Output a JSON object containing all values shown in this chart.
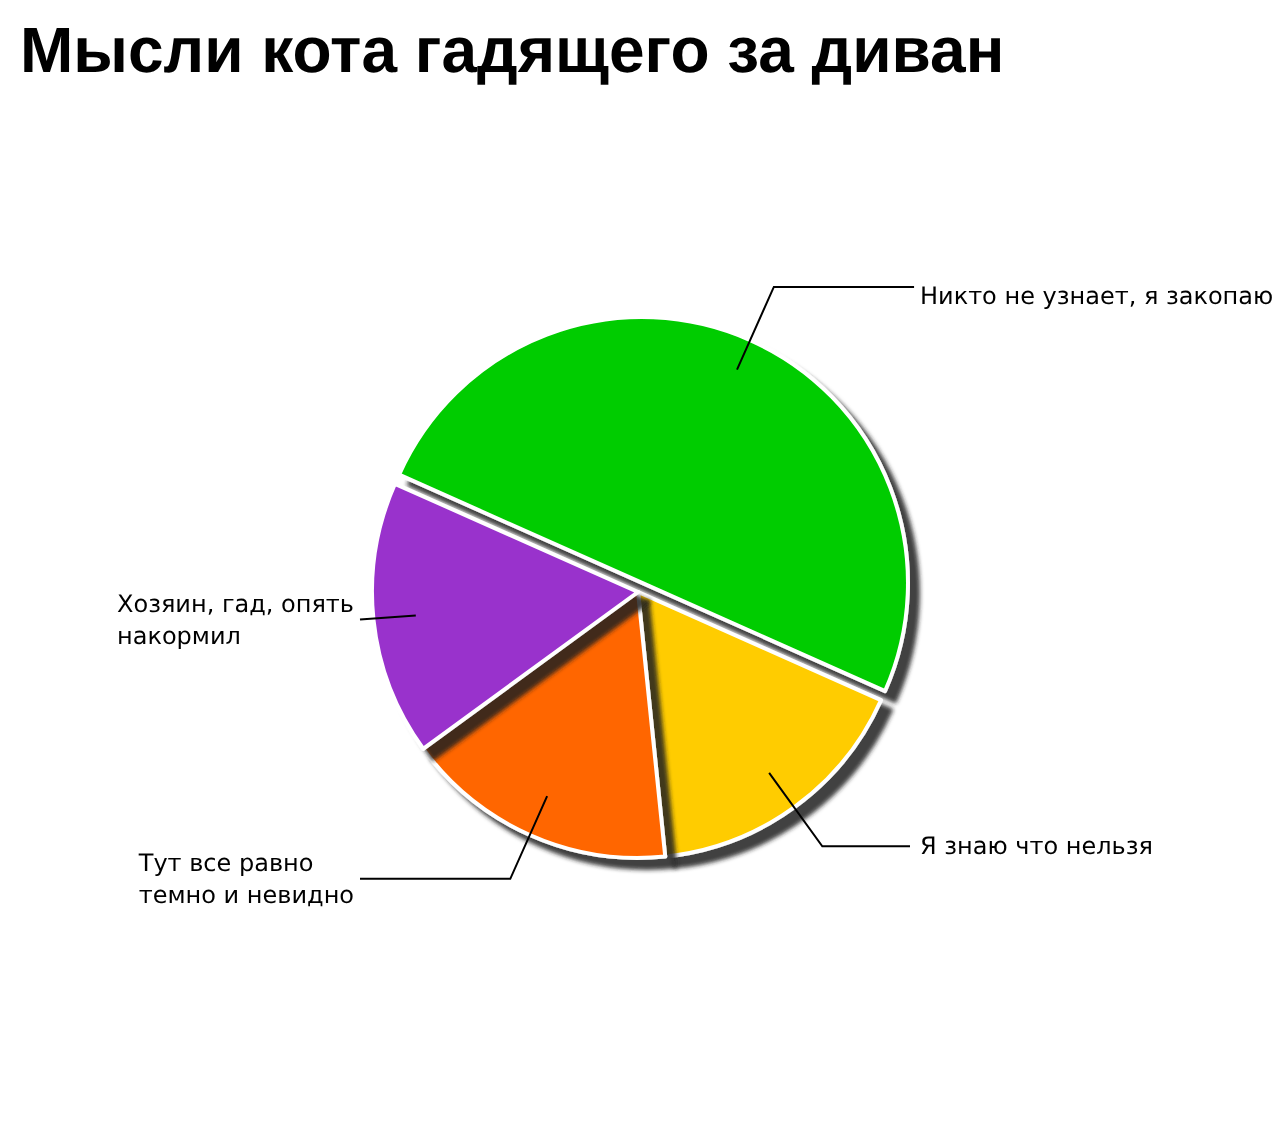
{
  "chart_data": {
    "type": "pie",
    "title": "Мысли кота гадящего за диван",
    "categories": [
      "Никто не узнает, я закопаю",
      "Я знаю что нельзя",
      "Тут все равно темно и невидно",
      "Хозяин, гад, опять накормил"
    ],
    "values": [
      50,
      16.7,
      16.6,
      16.7
    ],
    "colors": [
      "#00cc00",
      "#ffcc00",
      "#ff6600",
      "#9933cc"
    ]
  }
}
